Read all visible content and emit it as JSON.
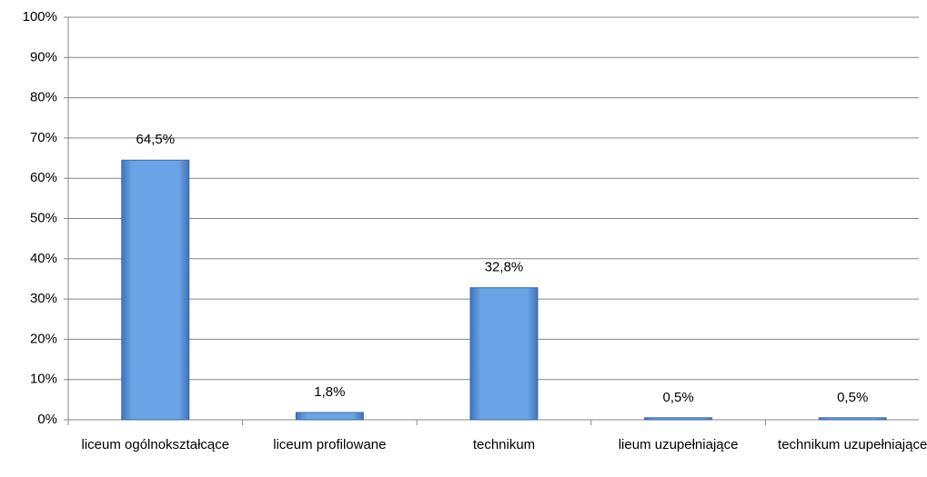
{
  "chart_data": {
    "type": "bar",
    "categories": [
      "liceum ogólnokształcące",
      "liceum profilowane",
      "technikum",
      "lieum uzupełniające",
      "technikum uzupełniające"
    ],
    "values": [
      64.5,
      1.8,
      32.8,
      0.5,
      0.5
    ],
    "value_labels": [
      "64,5%",
      "1,8%",
      "32,8%",
      "0,5%",
      "0,5%"
    ],
    "color": "#5b93d9",
    "ylim": [
      0,
      100
    ],
    "yticks": [
      {
        "value": 0,
        "label": "0%"
      },
      {
        "value": 10,
        "label": "10%"
      },
      {
        "value": 20,
        "label": "20%"
      },
      {
        "value": 30,
        "label": "30%"
      },
      {
        "value": 40,
        "label": "40%"
      },
      {
        "value": 50,
        "label": "50%"
      },
      {
        "value": 60,
        "label": "60%"
      },
      {
        "value": 70,
        "label": "70%"
      },
      {
        "value": 80,
        "label": "80%"
      },
      {
        "value": 90,
        "label": "90%"
      },
      {
        "value": 100,
        "label": "100%"
      }
    ],
    "grid": true
  }
}
